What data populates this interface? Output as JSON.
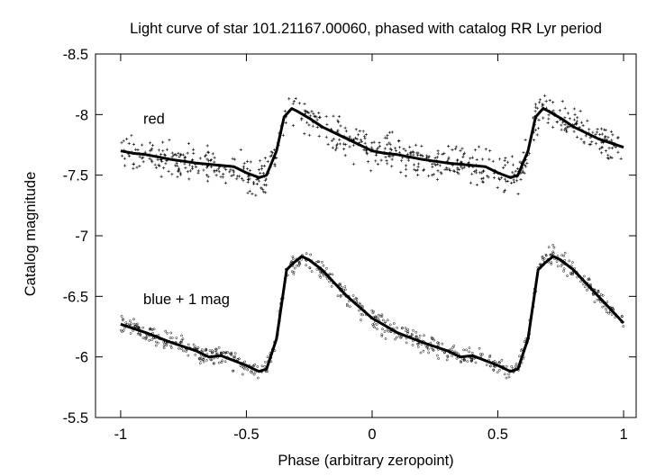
{
  "chart_data": {
    "type": "scatter",
    "title": "Light curve of star 101.21167.00060, phased with catalog RR Lyr period",
    "xlabel": "Phase (arbitrary zeropoint)",
    "ylabel": "Catalog magnitude",
    "xlim": [
      -1.1,
      1.05
    ],
    "ylim": [
      -5.5,
      -8.5
    ],
    "y_inverted": true,
    "grid": false,
    "x_ticks": [
      -1,
      -0.5,
      0,
      0.5,
      1
    ],
    "x_tick_labels": [
      "-1",
      "-0.5",
      "0",
      "0.5",
      "1"
    ],
    "y_ticks": [
      -8.5,
      -8,
      -7.5,
      -7,
      -6.5,
      -6,
      -5.5
    ],
    "y_tick_labels": [
      "-8.5",
      "-8",
      "-7.5",
      "-7",
      "-6.5",
      "-6",
      "-5.5"
    ],
    "annotations": [
      {
        "text": "red",
        "x": -0.91,
        "y": -7.97
      },
      {
        "text": "blue + 1 mag",
        "x": -0.91,
        "y": -6.48
      }
    ],
    "series": [
      {
        "marker": "plus",
        "mean_curve": {
          "x": [
            -1,
            -0.95,
            -0.9,
            -0.8,
            -0.7,
            -0.6,
            -0.55,
            -0.5,
            -0.45,
            -0.42,
            -0.38,
            -0.35,
            -0.32,
            -0.3,
            -0.25,
            -0.2,
            -0.1,
            0,
            0.05,
            0.1,
            0.2,
            0.3,
            0.4,
            0.45,
            0.5,
            0.55,
            0.58,
            0.62,
            0.65,
            0.68,
            0.7,
            0.75,
            0.8,
            0.9,
            1
          ],
          "y": [
            -7.7,
            -7.68,
            -7.67,
            -7.63,
            -7.6,
            -7.58,
            -7.57,
            -7.52,
            -7.48,
            -7.5,
            -7.7,
            -7.98,
            -8.05,
            -8.03,
            -7.97,
            -7.9,
            -7.8,
            -7.7,
            -7.68,
            -7.67,
            -7.63,
            -7.6,
            -7.58,
            -7.57,
            -7.52,
            -7.48,
            -7.5,
            -7.7,
            -7.98,
            -8.05,
            -8.03,
            -7.97,
            -7.9,
            -7.8,
            -7.73
          ]
        }
      },
      {
        "marker": "circle",
        "mean_curve": {
          "x": [
            -1,
            -0.9,
            -0.8,
            -0.7,
            -0.65,
            -0.6,
            -0.5,
            -0.45,
            -0.42,
            -0.38,
            -0.34,
            -0.31,
            -0.28,
            -0.25,
            -0.2,
            -0.1,
            0,
            0.1,
            0.2,
            0.3,
            0.35,
            0.4,
            0.5,
            0.55,
            0.58,
            0.62,
            0.66,
            0.69,
            0.72,
            0.75,
            0.8,
            0.9,
            1
          ],
          "y": [
            -6.27,
            -6.2,
            -6.12,
            -6.05,
            -6.0,
            -6.01,
            -5.93,
            -5.88,
            -5.9,
            -6.15,
            -6.72,
            -6.78,
            -6.83,
            -6.8,
            -6.72,
            -6.5,
            -6.32,
            -6.2,
            -6.12,
            -6.05,
            -6.0,
            -6.01,
            -5.93,
            -5.88,
            -5.9,
            -6.15,
            -6.72,
            -6.78,
            -6.83,
            -6.8,
            -6.72,
            -6.5,
            -6.28
          ]
        }
      }
    ]
  }
}
